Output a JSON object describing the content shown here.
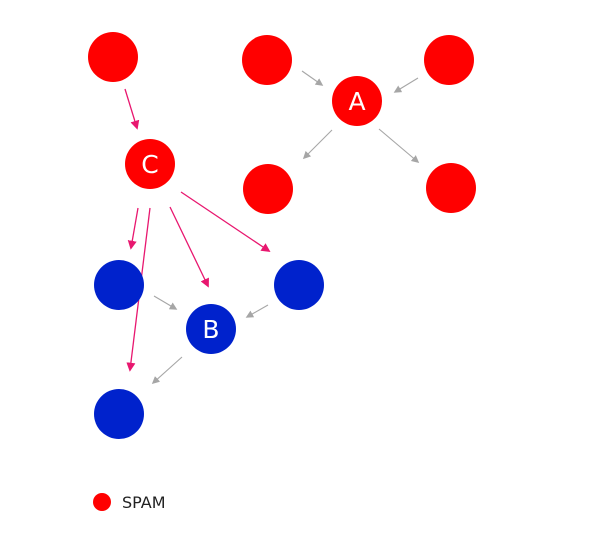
{
  "colors": {
    "spam": "#ff0000",
    "ham": "#0022cc",
    "spam_edge": "#e8176f",
    "normal_edge": "#a6a6a6",
    "label": "#ffffff"
  },
  "nodes": [
    {
      "id": "n1",
      "label": "",
      "class": "spam"
    },
    {
      "id": "n2",
      "label": "",
      "class": "spam"
    },
    {
      "id": "n3",
      "label": "",
      "class": "spam"
    },
    {
      "id": "A",
      "label": "A",
      "class": "spam"
    },
    {
      "id": "n5",
      "label": "",
      "class": "spam"
    },
    {
      "id": "n6",
      "label": "",
      "class": "spam"
    },
    {
      "id": "C",
      "label": "C",
      "class": "spam"
    },
    {
      "id": "b1",
      "label": "",
      "class": "ham"
    },
    {
      "id": "b2",
      "label": "",
      "class": "ham"
    },
    {
      "id": "B",
      "label": "B",
      "class": "ham"
    },
    {
      "id": "b3",
      "label": "",
      "class": "ham"
    }
  ],
  "edges": [
    {
      "from": "n1",
      "to": "C",
      "kind": "spam_edge"
    },
    {
      "from": "n2",
      "to": "A",
      "kind": "normal_edge"
    },
    {
      "from": "n3",
      "to": "A",
      "kind": "normal_edge"
    },
    {
      "from": "A",
      "to": "n5",
      "kind": "normal_edge"
    },
    {
      "from": "A",
      "to": "n6",
      "kind": "normal_edge"
    },
    {
      "from": "C",
      "to": "b1",
      "kind": "spam_edge"
    },
    {
      "from": "C",
      "to": "B",
      "kind": "spam_edge"
    },
    {
      "from": "C",
      "to": "b2",
      "kind": "spam_edge"
    },
    {
      "from": "C",
      "to": "b3",
      "kind": "spam_edge"
    },
    {
      "from": "b1",
      "to": "B",
      "kind": "normal_edge"
    },
    {
      "from": "b2",
      "to": "B",
      "kind": "normal_edge"
    },
    {
      "from": "B",
      "to": "b3",
      "kind": "normal_edge"
    }
  ],
  "legend": {
    "label": "SPAM",
    "class": "spam"
  }
}
